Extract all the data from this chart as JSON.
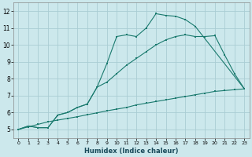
{
  "xlabel": "Humidex (Indice chaleur)",
  "xlim": [
    -0.5,
    23.5
  ],
  "ylim": [
    4.5,
    12.5
  ],
  "yticks": [
    5,
    6,
    7,
    8,
    9,
    10,
    11,
    12
  ],
  "xticks": [
    0,
    1,
    2,
    3,
    4,
    5,
    6,
    7,
    8,
    9,
    10,
    11,
    12,
    13,
    14,
    15,
    16,
    17,
    18,
    19,
    20,
    21,
    22,
    23
  ],
  "bg_color": "#cce8ec",
  "grid_color": "#aacdd4",
  "line_color": "#1a7a6e",
  "line1_x": [
    0,
    1,
    2,
    3,
    4,
    5,
    6,
    7,
    8,
    9,
    10,
    11,
    12,
    13,
    14,
    15,
    16,
    17,
    18,
    23
  ],
  "line1_y": [
    5.0,
    5.2,
    5.1,
    5.1,
    5.85,
    6.0,
    6.3,
    6.5,
    7.5,
    8.9,
    10.5,
    10.6,
    10.5,
    11.0,
    11.85,
    11.75,
    11.7,
    11.5,
    11.1,
    7.4
  ],
  "line2_x": [
    0,
    1,
    2,
    3,
    4,
    5,
    6,
    7,
    8,
    9,
    10,
    11,
    12,
    13,
    14,
    15,
    16,
    17,
    18,
    19,
    20,
    21,
    22,
    23
  ],
  "line2_y": [
    5.0,
    5.2,
    5.1,
    5.1,
    5.85,
    6.0,
    6.3,
    6.5,
    7.5,
    7.8,
    8.3,
    8.8,
    9.2,
    9.6,
    10.0,
    10.3,
    10.5,
    10.6,
    10.5,
    10.5,
    10.55,
    9.4,
    8.3,
    7.4
  ],
  "line3_x": [
    0,
    1,
    2,
    3,
    4,
    5,
    6,
    7,
    8,
    9,
    10,
    11,
    12,
    13,
    14,
    15,
    16,
    17,
    18,
    19,
    20,
    21,
    22,
    23
  ],
  "line3_y": [
    5.0,
    5.15,
    5.3,
    5.45,
    5.55,
    5.65,
    5.75,
    5.87,
    5.98,
    6.1,
    6.2,
    6.3,
    6.45,
    6.55,
    6.65,
    6.75,
    6.85,
    6.95,
    7.05,
    7.15,
    7.25,
    7.3,
    7.35,
    7.4
  ]
}
